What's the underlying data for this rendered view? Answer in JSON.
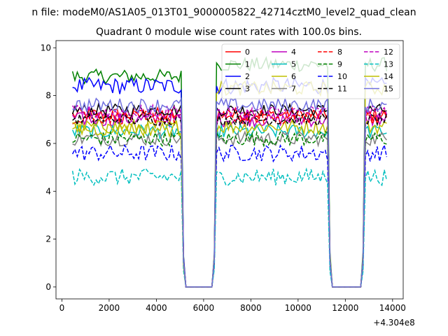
{
  "suptitle": "n file: modeM0/AS1A05_013T01_9000005822_42714cztM0_level2_quad_clean",
  "chart_data": {
    "type": "line",
    "title": "Quadrant 0 module wise count rates with 100.0s bins.",
    "xlabel": "",
    "ylabel": "",
    "x_offset_label": "+4.304e8",
    "xlim": [
      -250,
      14450
    ],
    "ylim": [
      -0.5,
      10.3
    ],
    "x_ticks": [
      0,
      2000,
      4000,
      6000,
      8000,
      10000,
      12000,
      14000
    ],
    "y_ticks": [
      0,
      2,
      4,
      6,
      8,
      10
    ],
    "grid": false,
    "legend_position": "top-right",
    "legend_columns": 4,
    "x_start": 450,
    "x_step": 100,
    "gaps": [
      [
        5250,
        6350
      ],
      [
        11450,
        12650
      ]
    ],
    "x_end": 13750,
    "series": [
      {
        "name": "0",
        "color": "#ff0000",
        "dash": "solid",
        "level": 7.2,
        "noise": 0.3
      },
      {
        "name": "1",
        "color": "#008000",
        "dash": "solid",
        "level": 8.8,
        "noise": 0.3
      },
      {
        "name": "2",
        "color": "#0000ff",
        "dash": "solid",
        "level": 8.4,
        "noise": 0.35
      },
      {
        "name": "3",
        "color": "#000000",
        "dash": "solid",
        "level": 7.4,
        "noise": 0.25
      },
      {
        "name": "4",
        "color": "#bf00bf",
        "dash": "solid",
        "level": 7.0,
        "noise": 0.3
      },
      {
        "name": "5",
        "color": "#00bfbf",
        "dash": "solid",
        "level": 6.5,
        "noise": 0.3
      },
      {
        "name": "6",
        "color": "#bfbf00",
        "dash": "solid",
        "level": 6.7,
        "noise": 0.3
      },
      {
        "name": "7",
        "color": "#808080",
        "dash": "solid",
        "level": 6.2,
        "noise": 0.3
      },
      {
        "name": "8",
        "color": "#ff0000",
        "dash": "dashed",
        "level": 7.1,
        "noise": 0.3
      },
      {
        "name": "9",
        "color": "#008000",
        "dash": "dashed",
        "level": 6.2,
        "noise": 0.3
      },
      {
        "name": "10",
        "color": "#0000ff",
        "dash": "dashed",
        "level": 5.6,
        "noise": 0.35
      },
      {
        "name": "11",
        "color": "#000000",
        "dash": "dashed",
        "level": 7.0,
        "noise": 0.25
      },
      {
        "name": "12",
        "color": "#bf00bf",
        "dash": "dashed",
        "level": 7.3,
        "noise": 0.3
      },
      {
        "name": "13",
        "color": "#00bfbf",
        "dash": "dashed",
        "level": 4.6,
        "noise": 0.35
      },
      {
        "name": "14",
        "color": "#bfbf00",
        "dash": "solid",
        "level": 6.6,
        "noise": 0.3
      },
      {
        "name": "15",
        "color": "#7070e0",
        "dash": "solid",
        "level": 7.6,
        "noise": 0.3
      }
    ],
    "late_series_overrides": {
      "1": {
        "after": 6350,
        "level": 9.3
      },
      "14": {
        "after": 6350,
        "level": 8.3
      }
    }
  }
}
